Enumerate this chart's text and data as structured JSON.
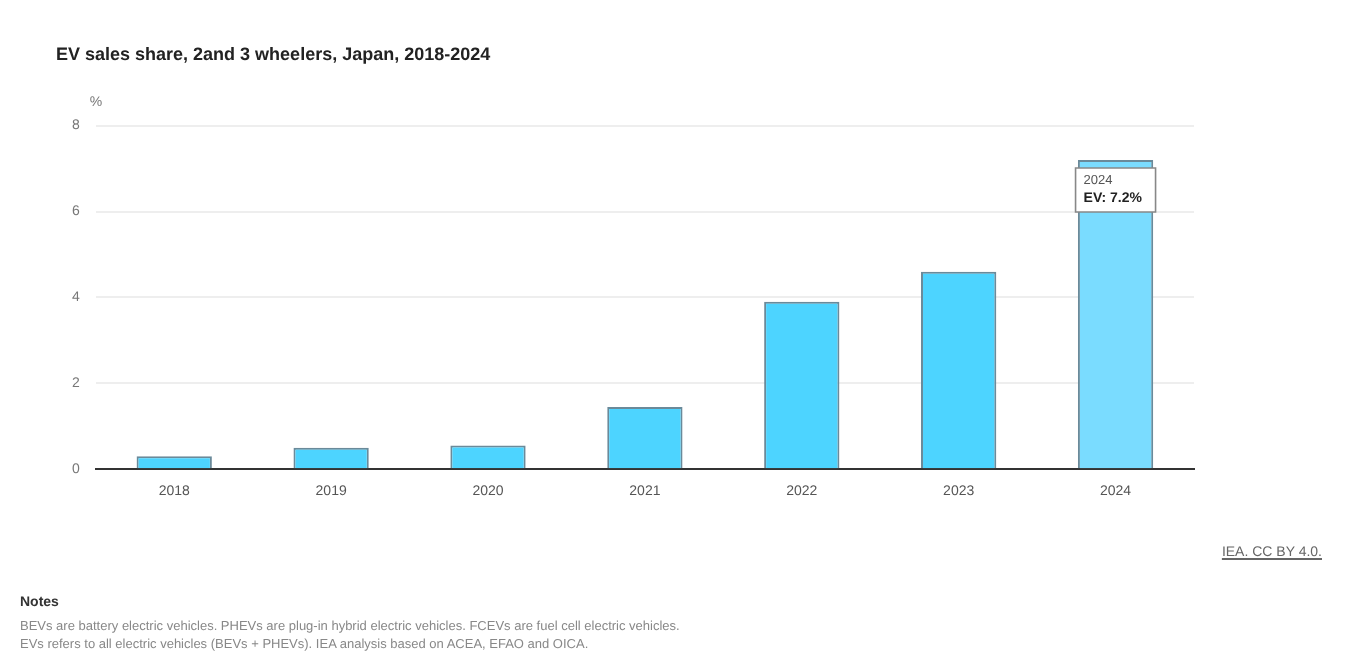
{
  "chart_data": {
    "type": "bar",
    "title": "EV sales share, 2and 3 wheelers, Japan, 2018-2024",
    "ylabel": "%",
    "categories": [
      "2018",
      "2019",
      "2020",
      "2021",
      "2022",
      "2023",
      "2024"
    ],
    "values": [
      0.3,
      0.5,
      0.55,
      1.45,
      3.9,
      4.6,
      7.2
    ],
    "colors": [
      "#4dd4ff",
      "#4dd4ff",
      "#4dd4ff",
      "#4dd4ff",
      "#4dd4ff",
      "#4dd4ff",
      "#7adcff"
    ],
    "ylim": [
      0,
      8
    ],
    "yticks": [
      0,
      2,
      4,
      6,
      8
    ],
    "grid": "y",
    "legend": false,
    "annotations": [
      {
        "text": "EV: 7.2%",
        "x": "2024",
        "y": 7.2
      },
      "IEA. CC BY 4.0.",
      "Notes",
      "BEVs are battery electric vehicles. PHEVs are plug-in hybrid electric vehicles. FCEVs are fuel cell electric vehicles. EVs refers to all electric vehicles (BEVs + PHEVs). IEA analysis based on ACEA, EFAO and OICA."
    ]
  }
}
